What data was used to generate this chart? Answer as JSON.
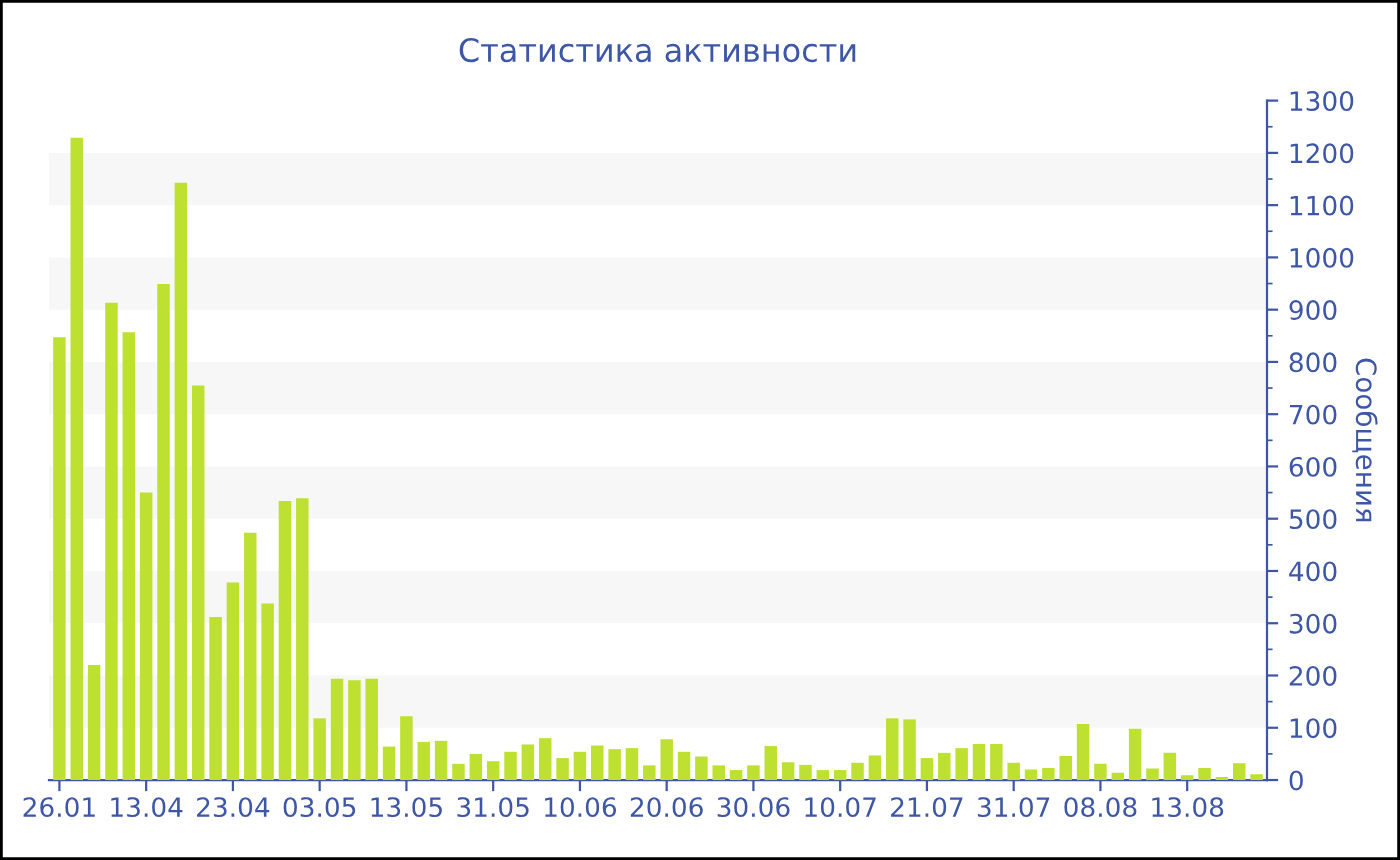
{
  "chart_data": {
    "type": "bar",
    "title": "Статистика активности",
    "ylabel": "Сообщения",
    "categories": [
      "26.01",
      null,
      null,
      null,
      null,
      "13.04",
      null,
      null,
      null,
      null,
      "23.04",
      null,
      null,
      null,
      null,
      "03.05",
      null,
      null,
      null,
      null,
      "13.05",
      null,
      null,
      null,
      null,
      "31.05",
      null,
      null,
      null,
      null,
      "10.06",
      null,
      null,
      null,
      null,
      "20.06",
      null,
      null,
      null,
      null,
      "30.06",
      null,
      null,
      null,
      null,
      "10.07",
      null,
      null,
      null,
      null,
      "21.07",
      null,
      null,
      null,
      null,
      "31.07",
      null,
      null,
      null,
      null,
      "08.08",
      null,
      null,
      null,
      null,
      "13.08",
      null,
      null,
      null,
      null
    ],
    "values": [
      847,
      1229,
      220,
      913,
      857,
      550,
      949,
      1143,
      755,
      312,
      378,
      473,
      338,
      534,
      539,
      118,
      194,
      191,
      194,
      64,
      122,
      73,
      75,
      31,
      50,
      36,
      54,
      68,
      80,
      42,
      54,
      66,
      59,
      61,
      28,
      78,
      54,
      45,
      28,
      19,
      28,
      65,
      34,
      29,
      19,
      19,
      33,
      47,
      118,
      116,
      42,
      52,
      61,
      69,
      69,
      33,
      20,
      23,
      46,
      107,
      31,
      14,
      98,
      22,
      52,
      9,
      23,
      6,
      32,
      11
    ],
    "color": "#bde031",
    "ylim": [
      0,
      1300
    ],
    "yticks": [
      0,
      100,
      200,
      300,
      400,
      500,
      600,
      700,
      800,
      900,
      1000,
      1100,
      1200,
      1300
    ],
    "bands": [
      {
        "axis": "y",
        "from": 100,
        "to": 200,
        "color": "#f7f7f7"
      },
      {
        "axis": "y",
        "from": 300,
        "to": 400,
        "color": "#f7f7f7"
      },
      {
        "axis": "y",
        "from": 500,
        "to": 600,
        "color": "#f7f7f7"
      },
      {
        "axis": "y",
        "from": 700,
        "to": 800,
        "color": "#f7f7f7"
      },
      {
        "axis": "y",
        "from": 900,
        "to": 1000,
        "color": "#f7f7f7"
      },
      {
        "axis": "y",
        "from": 1100,
        "to": 1200,
        "color": "#f7f7f7"
      }
    ]
  }
}
